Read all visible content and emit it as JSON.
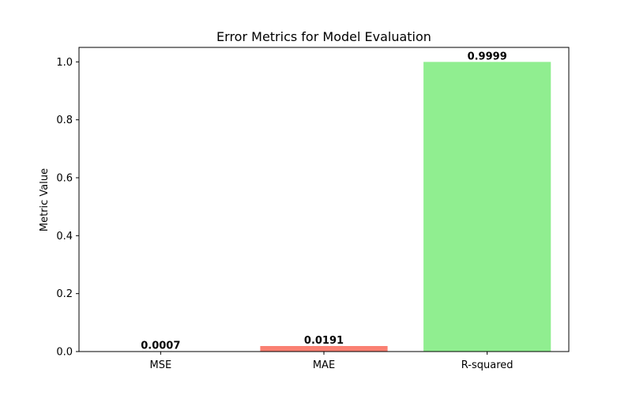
{
  "chart_data": {
    "type": "bar",
    "title": "Error Metrics for Model Evaluation",
    "xlabel": "",
    "ylabel": "Metric Value",
    "categories": [
      "MSE",
      "MAE",
      "R-squared"
    ],
    "values": [
      0.0007,
      0.0191,
      0.9999
    ],
    "value_labels": [
      "0.0007",
      "0.0191",
      "0.9999"
    ],
    "colors": [
      "#87ceeb",
      "#fa8072",
      "#90ee90"
    ],
    "ylim": [
      0,
      1.05
    ],
    "yticks": [
      0.0,
      0.2,
      0.4,
      0.6,
      0.8,
      1.0
    ],
    "ytick_labels": [
      "0.0",
      "0.2",
      "0.4",
      "0.6",
      "0.8",
      "1.0"
    ],
    "grid": false,
    "legend": "none"
  }
}
